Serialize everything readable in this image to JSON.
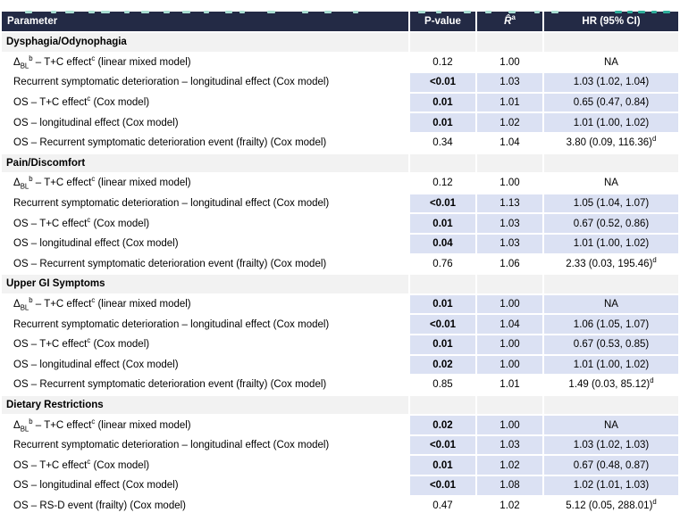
{
  "colors": {
    "header_bg": "#232a45",
    "header_text": "#ffffff",
    "highlight": "#dbe1f3",
    "section_bg": "#f2f2f2",
    "row_bg": "#ffffff",
    "text": "#000000",
    "remnant_teal_light": "#a9ddd1",
    "remnant_teal_dark": "#2fae9a"
  },
  "table": {
    "columns": [
      {
        "html": "Parameter"
      },
      {
        "html": "P-value"
      },
      {
        "html": "<i>R̂</i><sup>a</sup>"
      },
      {
        "html": "HR (95% CI)"
      }
    ],
    "sections": [
      {
        "title": "Dysphagia/Odynophagia",
        "rows": [
          {
            "param": "Δ<sub>BL</sub><sup>b</sup> – T+C effect<sup>c</sup> (linear mixed model)",
            "p": "0.12",
            "r": "1.00",
            "hr": "NA",
            "sig": false
          },
          {
            "param": "Recurrent symptomatic deterioration – longitudinal effect (Cox model)",
            "p": "&lt;0.01",
            "r": "1.03",
            "hr": "1.03 (1.02, 1.04)",
            "sig": true
          },
          {
            "param": "OS – T+C effect<sup>c</sup> (Cox model)",
            "p": "0.01",
            "r": "1.01",
            "hr": "0.65 (0.47, 0.84)",
            "sig": true
          },
          {
            "param": "OS – longitudinal effect (Cox model)",
            "p": "0.01",
            "r": "1.02",
            "hr": "1.01 (1.00, 1.02)",
            "sig": true
          },
          {
            "param": "OS – Recurrent symptomatic deterioration event (frailty) (Cox model)",
            "p": "0.34",
            "r": "1.04",
            "hr": "3.80 (0.09, 116.36)<sup>d</sup>",
            "sig": false
          }
        ]
      },
      {
        "title": "Pain/Discomfort",
        "rows": [
          {
            "param": "Δ<sub>BL</sub><sup>b</sup> – T+C effect<sup>c</sup> (linear mixed model)",
            "p": "0.12",
            "r": "1.00",
            "hr": "NA",
            "sig": false
          },
          {
            "param": "Recurrent symptomatic deterioration – longitudinal effect (Cox model)",
            "p": "&lt;0.01",
            "r": "1.13",
            "hr": "1.05 (1.04, 1.07)",
            "sig": true
          },
          {
            "param": "OS – T+C effect<sup>c</sup> (Cox model)",
            "p": "0.01",
            "r": "1.03",
            "hr": "0.67 (0.52, 0.86)",
            "sig": true
          },
          {
            "param": "OS – longitudinal effect (Cox model)",
            "p": "0.04",
            "r": "1.03",
            "hr": "1.01 (1.00, 1.02)",
            "sig": true
          },
          {
            "param": "OS – Recurrent symptomatic deterioration event (frailty) (Cox model)",
            "p": "0.76",
            "r": "1.06",
            "hr": "2.33 (0.03, 195.46)<sup>d</sup>",
            "sig": false
          }
        ]
      },
      {
        "title": "Upper GI Symptoms",
        "rows": [
          {
            "param": "Δ<sub>BL</sub><sup>b</sup> – T+C effect<sup>c</sup> (linear mixed model)",
            "p": "0.01",
            "r": "1.00",
            "hr": "NA",
            "sig": true
          },
          {
            "param": "Recurrent symptomatic deterioration – longitudinal effect (Cox model)",
            "p": "&lt;0.01",
            "r": "1.04",
            "hr": "1.06 (1.05, 1.07)",
            "sig": true
          },
          {
            "param": "OS – T+C effect<sup>c</sup> (Cox model)",
            "p": "0.01",
            "r": "1.00",
            "hr": "0.67 (0.53, 0.85)",
            "sig": true
          },
          {
            "param": "OS – longitudinal effect (Cox model)",
            "p": "0.02",
            "r": "1.00",
            "hr": "1.01 (1.00, 1.02)",
            "sig": true
          },
          {
            "param": "OS – Recurrent symptomatic deterioration event (frailty) (Cox model)",
            "p": "0.85",
            "r": "1.01",
            "hr": "1.49 (0.03, 85.12)<sup>d</sup>",
            "sig": false
          }
        ]
      },
      {
        "title": "Dietary Restrictions",
        "rows": [
          {
            "param": "Δ<sub>BL</sub><sup>b</sup> – T+C effect<sup>c</sup> (linear mixed model)",
            "p": "0.02",
            "r": "1.00",
            "hr": "NA",
            "sig": true
          },
          {
            "param": "Recurrent symptomatic deterioration – longitudinal effect (Cox model)",
            "p": "&lt;0.01",
            "r": "1.03",
            "hr": "1.03 (1.02, 1.03)",
            "sig": true
          },
          {
            "param": "OS – T+C effect<sup>c</sup> (Cox model)",
            "p": "0.01",
            "r": "1.02",
            "hr": "0.67 (0.48, 0.87)",
            "sig": true
          },
          {
            "param": "OS – longitudinal effect (Cox model)",
            "p": "&lt;0.01",
            "r": "1.08",
            "hr": "1.02 (1.01, 1.03)",
            "sig": true
          },
          {
            "param": "OS – RS-D event (frailty) (Cox model)",
            "p": "0.47",
            "r": "1.02",
            "hr": "5.12 (0.05, 288.01)<sup>d</sup>",
            "sig": false
          }
        ]
      }
    ]
  }
}
